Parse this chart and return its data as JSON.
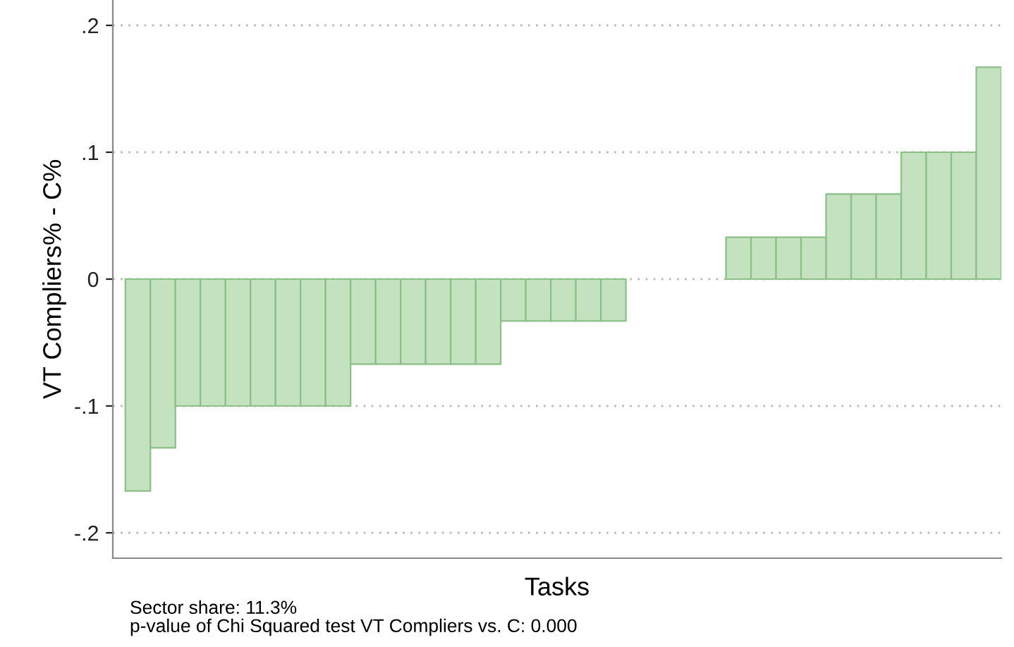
{
  "chart_data": {
    "type": "bar",
    "xlabel": "Tasks",
    "ylabel": "VT Compliers% - C%",
    "categories": [
      null,
      null,
      null,
      null,
      null,
      null,
      null,
      null,
      null,
      null,
      null,
      null,
      null,
      null,
      null,
      null,
      null,
      null,
      null,
      null,
      null,
      null,
      null,
      null,
      null,
      null,
      null,
      null,
      null,
      null,
      null,
      null,
      null,
      null,
      null
    ],
    "series": [
      {
        "color": "#c4e1c0",
        "values": [
          -0.167,
          -0.133,
          -0.1,
          -0.1,
          -0.1,
          -0.1,
          -0.1,
          -0.1,
          -0.1,
          -0.067,
          -0.067,
          -0.067,
          -0.067,
          -0.067,
          -0.067,
          -0.033,
          -0.033,
          -0.033,
          -0.033,
          -0.033,
          null,
          null,
          null,
          null,
          0.033,
          0.033,
          0.033,
          0.033,
          0.067,
          0.067,
          0.067,
          0.1,
          0.1,
          0.1,
          0.167
        ]
      }
    ],
    "ylim": [
      -0.22,
      0.22
    ],
    "yticks": [
      {
        "value": -0.2,
        "label": "-.2"
      },
      {
        "value": -0.1,
        "label": "-.1"
      },
      {
        "value": 0,
        "label": "0"
      },
      {
        "value": 0.1,
        "label": ".1"
      },
      {
        "value": 0.2,
        "label": ".2"
      }
    ],
    "grid": "y",
    "annotations": [
      "Sector share: 11.3%",
      "p-value of Chi Squared test VT Compliers vs. C: 0.000"
    ]
  }
}
